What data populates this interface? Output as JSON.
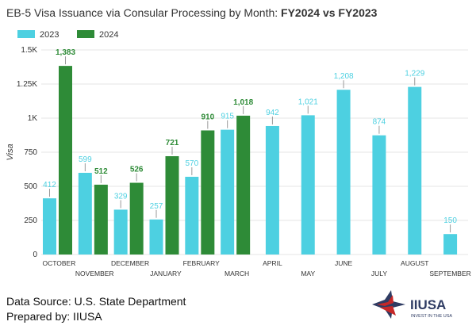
{
  "title_plain": "EB-5 Visa Issuance via Consular Processing by Month: ",
  "title_bold": "FY2024 vs FY2023",
  "source_line": "Data Source: U.S. State Department",
  "prepared_line": "Prepared by: IIUSA",
  "logo": {
    "name": "IIUSA",
    "tagline": "INVEST IN THE USA"
  },
  "colors": {
    "y2023": "#4dd0e1",
    "y2024": "#2e8b37",
    "label2024": "#2e8b37",
    "label2023": "#4dd0e1",
    "grid": "#e6e6e6"
  },
  "chart_data": {
    "type": "bar",
    "title": "EB-5 Visa Issuance via Consular Processing by Month: FY2024 vs FY2023",
    "xlabel": "",
    "ylabel": "Visa",
    "ylim": [
      0,
      1500
    ],
    "yticks": [
      0,
      250,
      500,
      750,
      1000,
      1250,
      1500
    ],
    "ytick_labels": [
      "0",
      "250",
      "500",
      "750",
      "1K",
      "1.25K",
      "1.5K"
    ],
    "grid": true,
    "legend_position": "top-left",
    "categories": [
      "OCTOBER",
      "NOVEMBER",
      "DECEMBER",
      "JANUARY",
      "FEBRUARY",
      "MARCH",
      "APRIL",
      "MAY",
      "JUNE",
      "JULY",
      "AUGUST",
      "SEPTEMBER"
    ],
    "series": [
      {
        "name": "2023",
        "values": [
          412,
          599,
          329,
          257,
          570,
          915,
          942,
          1021,
          1208,
          874,
          1229,
          150
        ],
        "labels": [
          "412",
          "599",
          "329",
          "257",
          "570",
          "915",
          "942",
          "1,021",
          "1,208",
          "874",
          "1,229",
          "150"
        ]
      },
      {
        "name": "2024",
        "values": [
          1383,
          512,
          526,
          721,
          910,
          1018,
          null,
          null,
          null,
          null,
          null,
          null
        ],
        "labels": [
          "1,383",
          "512",
          "526",
          "721",
          "910",
          "1,018",
          null,
          null,
          null,
          null,
          null,
          null
        ]
      }
    ]
  }
}
